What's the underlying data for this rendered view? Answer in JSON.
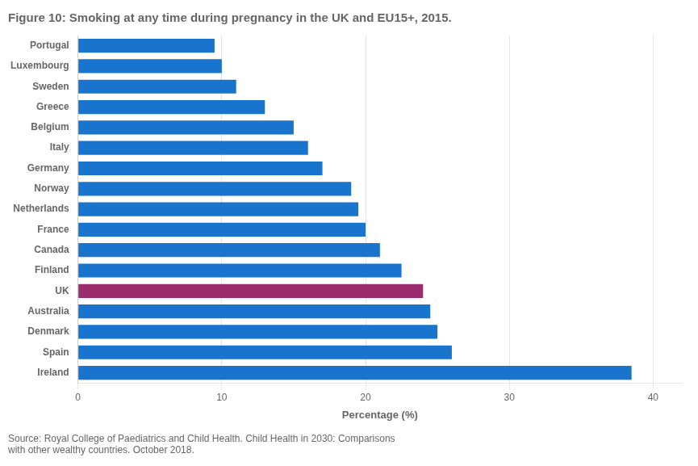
{
  "chart_data": {
    "type": "bar",
    "orientation": "horizontal",
    "title": "Figure 10: Smoking at any time during pregnancy in the UK and EU15+, 2015.",
    "xlabel": "Percentage (%)",
    "annotations": [
      "Source: Royal College of Paediatrics and Child Health. Child Health in 2030: Comparisons\nwith other wealthy countries. October 2018."
    ],
    "categories": [
      "Ireland",
      "Spain",
      "Denmark",
      "Australia",
      "UK",
      "Finland",
      "Canada",
      "France",
      "Netherlands",
      "Norway",
      "Germany",
      "Italy",
      "Belgium",
      "Greece",
      "Sweden",
      "Luxembourg",
      "Portugal"
    ],
    "values": [
      38.5,
      26.0,
      25.0,
      24.5,
      24.0,
      22.5,
      21.0,
      20.0,
      19.5,
      19.0,
      17.0,
      16.0,
      15.0,
      13.0,
      11.0,
      10.0,
      9.5
    ],
    "colors": [
      "#1874CD",
      "#1874CD",
      "#1874CD",
      "#1874CD",
      "#9B2D6E",
      "#1874CD",
      "#1874CD",
      "#1874CD",
      "#1874CD",
      "#1874CD",
      "#1874CD",
      "#1874CD",
      "#1874CD",
      "#1874CD",
      "#1874CD",
      "#1874CD",
      "#1874CD"
    ],
    "xlim": [
      0,
      42
    ],
    "xticks": [
      0,
      10,
      20,
      30,
      40
    ],
    "grid": true
  }
}
